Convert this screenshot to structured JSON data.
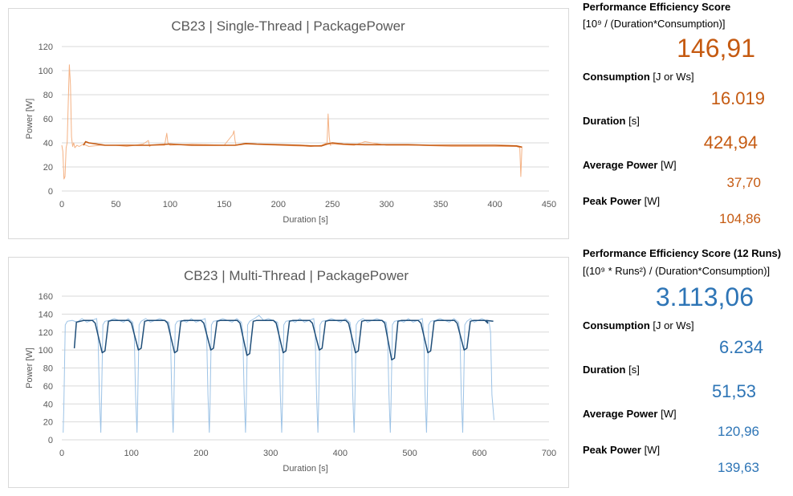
{
  "chart_data": [
    {
      "type": "line",
      "title": "CB23 | Single-Thread | PackagePower",
      "xlabel": "Duration [s]",
      "ylabel": "Power [W]",
      "xlim": [
        0,
        450
      ],
      "ylim": [
        0,
        120
      ],
      "xticks": [
        0,
        50,
        100,
        150,
        200,
        250,
        300,
        350,
        400,
        450
      ],
      "yticks": [
        0,
        20,
        40,
        60,
        80,
        100,
        120
      ],
      "grid": "horizontal",
      "series": [
        {
          "color": "#f4b183",
          "style": "raw",
          "x": [
            0,
            1,
            2,
            3,
            4,
            5,
            6,
            7,
            8,
            9,
            10,
            11,
            12,
            14,
            16,
            20,
            25,
            35,
            50,
            60,
            75,
            80,
            81,
            82,
            95,
            97,
            98,
            100,
            120,
            150,
            158,
            159,
            160,
            161,
            170,
            200,
            230,
            240,
            245,
            246,
            247,
            248,
            250,
            270,
            280,
            300,
            330,
            360,
            400,
            420,
            423,
            424,
            425
          ],
          "y": [
            38,
            33,
            10,
            12,
            36,
            40,
            75,
            104.86,
            88,
            45,
            37,
            40,
            36,
            38,
            37,
            39,
            37,
            38,
            38,
            37,
            39,
            42,
            37,
            38,
            38,
            48,
            40,
            38,
            39,
            38,
            47,
            50,
            42,
            38,
            39,
            38,
            37,
            38,
            40,
            64,
            45,
            38,
            39,
            38,
            41,
            38,
            38,
            37,
            37,
            37,
            36,
            12,
            37
          ]
        },
        {
          "color": "#c55a11",
          "style": "smoothed",
          "x": [
            20,
            22,
            25,
            40,
            60,
            80,
            100,
            120,
            140,
            160,
            170,
            180,
            200,
            220,
            230,
            240,
            245,
            250,
            260,
            280,
            300,
            320,
            340,
            360,
            380,
            400,
            420,
            425
          ],
          "y": [
            38,
            41,
            40,
            38,
            38,
            38,
            39,
            38,
            38,
            38,
            39.5,
            39,
            38.5,
            38,
            37.5,
            37.5,
            39,
            40,
            39,
            38.5,
            38.5,
            38.5,
            38,
            38,
            38,
            38,
            37.5,
            36.5
          ]
        }
      ]
    },
    {
      "type": "line",
      "title": "CB23 | Multi-Thread | PackagePower",
      "xlabel": "Duration [s]",
      "ylabel": "Power [W]",
      "xlim": [
        0,
        700
      ],
      "ylim": [
        0,
        160
      ],
      "xticks": [
        0,
        100,
        200,
        300,
        400,
        500,
        600,
        700
      ],
      "yticks": [
        0,
        20,
        40,
        60,
        80,
        100,
        120,
        140,
        160
      ],
      "grid": "horizontal",
      "run_starts": [
        2,
        56,
        108,
        160,
        212,
        264,
        316,
        368,
        420,
        472,
        524,
        576
      ],
      "run_end": 620,
      "series": [
        {
          "color": "#9dc3e6",
          "style": "raw",
          "raw_base": 132,
          "raw_dip": 8,
          "peak": 139.63
        },
        {
          "color": "#1f4e79",
          "style": "smoothed",
          "plateau": 133,
          "dips": [
            95,
            97,
            100,
            97,
            100,
            94,
            97,
            100,
            97,
            89,
            97,
            100
          ]
        }
      ]
    }
  ],
  "single": {
    "score_title": "Performance Efficiency Score",
    "score_formula": "[10⁹ / (Duration*Consumption)]",
    "score_value": "146,91",
    "consumption_label": "Consumption",
    "consumption_unit": "[J or Ws]",
    "consumption_value": "16.019",
    "duration_label": "Duration",
    "duration_unit": "[s]",
    "duration_value": "424,94",
    "avg_label": "Average Power",
    "avg_unit": "[W]",
    "avg_value": "37,70",
    "peak_label": "Peak Power",
    "peak_unit": "[W]",
    "peak_value": "104,86"
  },
  "multi": {
    "score_title": "Performance Efficiency Score (12 Runs)",
    "score_formula": "[(10⁹ * Runs²) / (Duration*Consumption)]",
    "score_value": "3.113,06",
    "consumption_label": "Consumption",
    "consumption_unit": "[J or Ws]",
    "consumption_value": "6.234",
    "duration_label": "Duration",
    "duration_unit": "[s]",
    "duration_value": "51,53",
    "avg_label": "Average Power",
    "avg_unit": "[W]",
    "avg_value": "120,96",
    "peak_label": "Peak Power",
    "peak_unit": "[W]",
    "peak_value": "139,63"
  },
  "colors": {
    "single_accent": "#c55a11",
    "multi_accent": "#2e75b6",
    "gridline": "#d9d9d9",
    "axis_text": "#595959"
  }
}
